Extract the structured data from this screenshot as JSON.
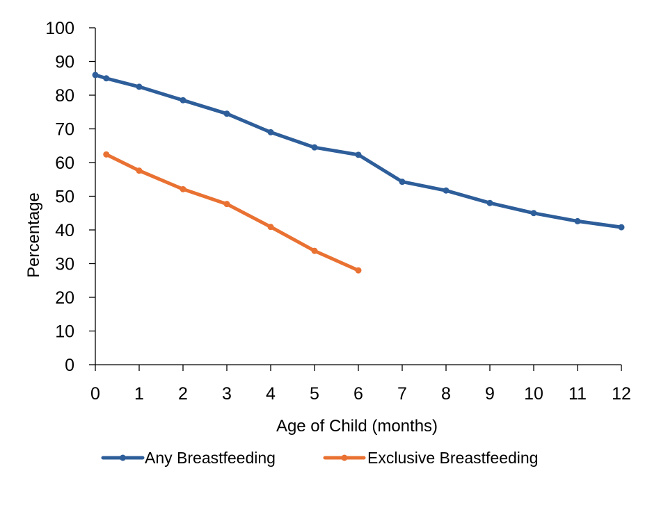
{
  "chart_data": {
    "type": "line",
    "title": "",
    "xlabel": "Age of Child (months)",
    "ylabel": "Percentage",
    "xlim": [
      0,
      12
    ],
    "ylim": [
      0,
      100
    ],
    "x_ticks": [
      "0",
      "1",
      "2",
      "3",
      "4",
      "5",
      "6",
      "7",
      "8",
      "9",
      "10",
      "11",
      "12"
    ],
    "y_ticks": [
      "0",
      "10",
      "20",
      "30",
      "40",
      "50",
      "60",
      "70",
      "80",
      "90",
      "100"
    ],
    "grid": false,
    "legend_position": "bottom",
    "series": [
      {
        "name": "Any Breastfeeding",
        "color": "#2E5E9A",
        "x": [
          0,
          0.25,
          1,
          2,
          3,
          4,
          5,
          6,
          7,
          8,
          9,
          10,
          11,
          12
        ],
        "values": [
          86,
          85,
          82.5,
          78.5,
          74.5,
          69,
          64.5,
          62.3,
          54.3,
          51.7,
          48,
          45,
          42.6,
          40.8
        ]
      },
      {
        "name": "Exclusive Breastfeeding",
        "color": "#E97132",
        "x": [
          0.25,
          1,
          2,
          3,
          4,
          5,
          6
        ],
        "values": [
          62.4,
          57.6,
          52.1,
          47.7,
          40.9,
          33.8,
          28
        ]
      }
    ]
  }
}
